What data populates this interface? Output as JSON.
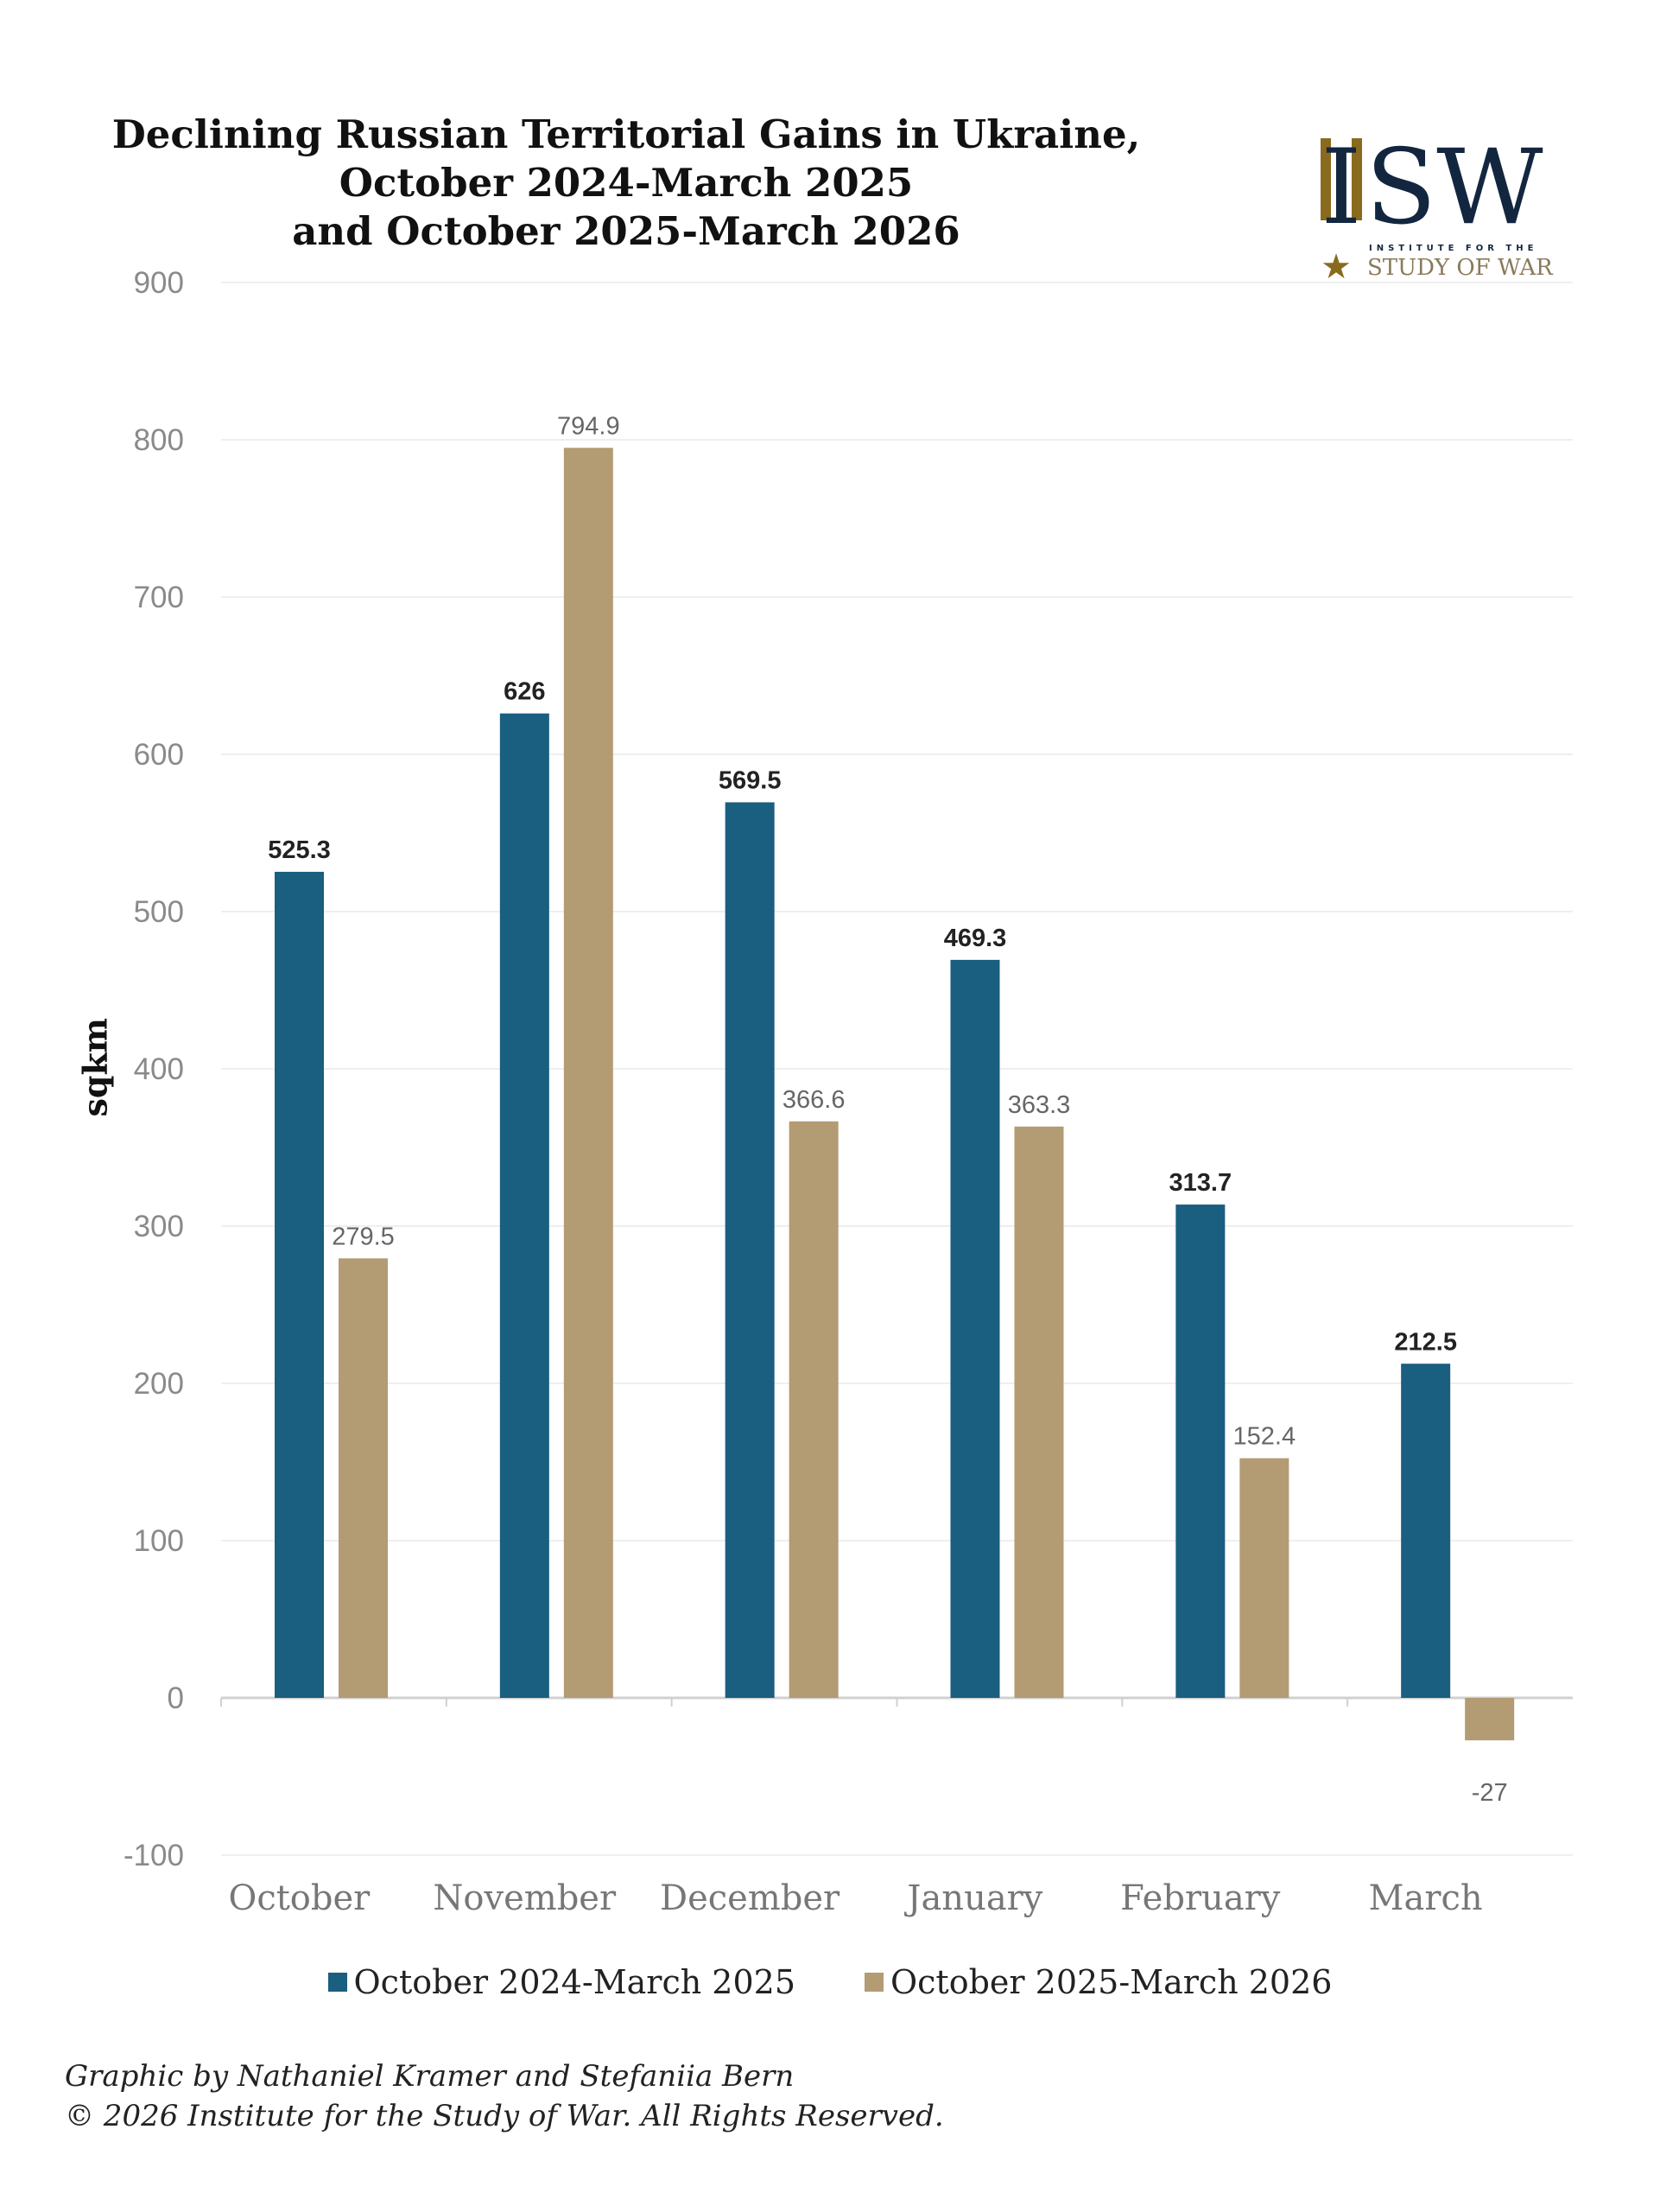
{
  "title": [
    "Declining Russian Territorial Gains in Ukraine,",
    "October 2024-March 2025",
    "and October 2025-March 2026"
  ],
  "logo": {
    "main": "ISW",
    "sub1": "INSTITUTE FOR THE",
    "sub2": "STUDY OF WAR"
  },
  "colors": {
    "series1": "#1a5e80",
    "series2": "#b39b73",
    "navy": "#13263f",
    "gold": "#8a6a1e"
  },
  "chart_data": {
    "type": "bar",
    "categories": [
      "October",
      "November",
      "December",
      "January",
      "February",
      "March"
    ],
    "series": [
      {
        "name": "October 2024-March 2025",
        "values": [
          525.3,
          626,
          569.5,
          469.3,
          313.7,
          212.5
        ],
        "labels": [
          "525.3",
          "626",
          "569.5",
          "469.3",
          "313.7",
          "212.5"
        ]
      },
      {
        "name": "October 2025-March 2026",
        "values": [
          279.5,
          794.9,
          366.6,
          363.3,
          152.4,
          -27
        ],
        "labels": [
          "279.5",
          "794.9",
          "366.6",
          "363.3",
          "152.4",
          "-27"
        ]
      }
    ],
    "ylabel": "sqkm",
    "xlabel": "",
    "ylim": [
      -100,
      900
    ],
    "yticks": [
      "-100",
      "0",
      "100",
      "200",
      "300",
      "400",
      "500",
      "600",
      "700",
      "800",
      "900"
    ],
    "grid": true,
    "legend": "bottom"
  },
  "footer": [
    "Graphic by Nathaniel Kramer and Stefaniia Bern",
    "© 2026 Institute for the Study of War. All Rights Reserved."
  ]
}
